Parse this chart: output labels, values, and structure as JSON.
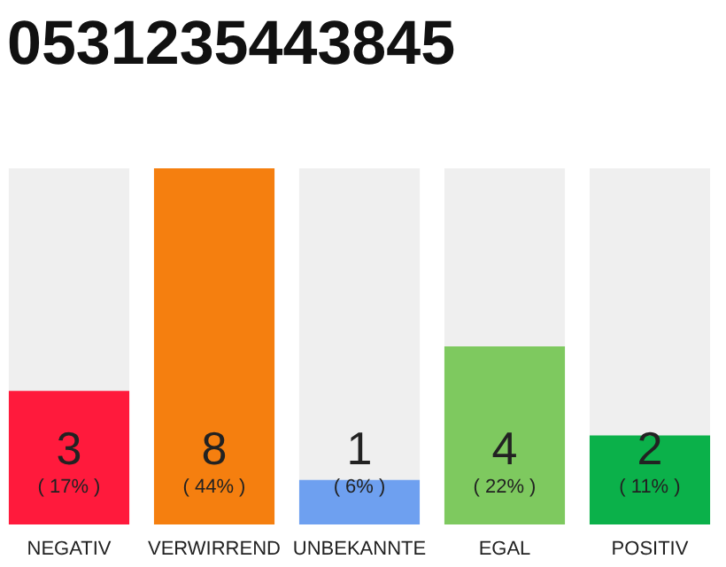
{
  "chart_data": {
    "type": "bar",
    "title": "0531235443845",
    "categories": [
      "NEGATIV",
      "VERWIRREND",
      "UNBEKANNTE",
      "EGAL",
      "POSITIV"
    ],
    "values": [
      3,
      8,
      1,
      4,
      2
    ],
    "colors": [
      "#ff1a3c",
      "#f57f0f",
      "#6ea0f0",
      "#7ec95f",
      "#0bb14a"
    ],
    "value_labels": [
      "3\n( 17% )",
      "8\n( 44% )",
      "1\n( 6% )",
      "4\n( 22% )",
      "2\n( 11% )"
    ],
    "ylim": [
      0,
      8
    ],
    "tick_labels": "x"
  }
}
